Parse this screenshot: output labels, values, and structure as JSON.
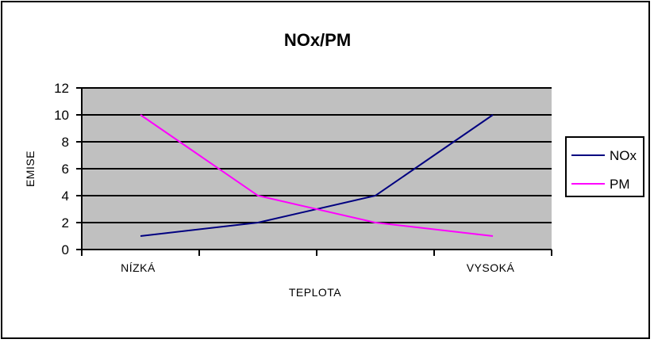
{
  "chart_data": {
    "type": "line",
    "title": "NOx/PM",
    "xlabel": "TEPLOTA",
    "ylabel": "EMISE",
    "categories": [
      "NÍZKÁ",
      "",
      "",
      "VYSOKÁ"
    ],
    "ylim": [
      0,
      12
    ],
    "yticks": [
      "0",
      "2",
      "4",
      "6",
      "8",
      "10",
      "12"
    ],
    "grid": true,
    "legend_position": "right",
    "plot_background": "#c0c0c0",
    "series": [
      {
        "name": "NOx",
        "color": "#000080",
        "values": [
          1,
          2,
          4,
          10
        ]
      },
      {
        "name": "PM",
        "color": "#ff00ff",
        "values": [
          10,
          4,
          2,
          1
        ]
      }
    ]
  }
}
